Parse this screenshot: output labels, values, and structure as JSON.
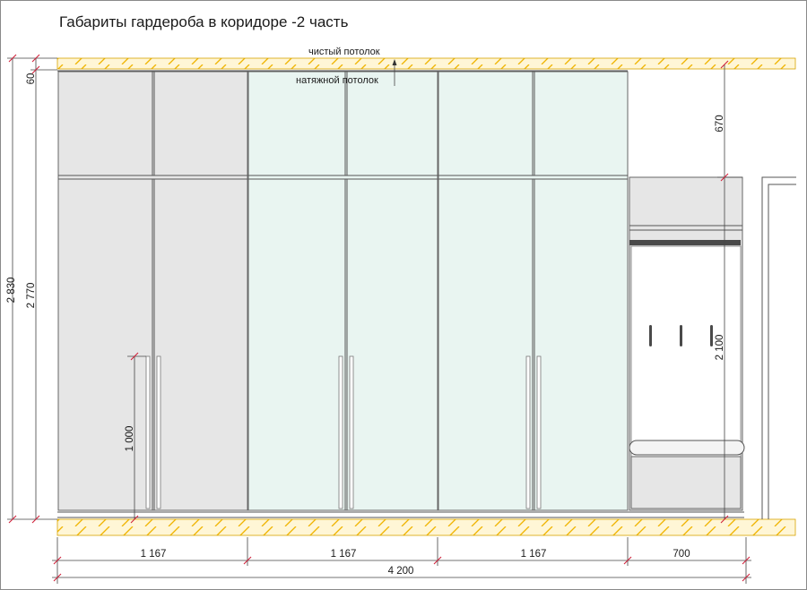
{
  "title": "Габариты гардероба в коридоре -2 часть",
  "notes": {
    "clean_ceiling": "чистый потолок",
    "stretch_ceiling": "натяжной потолок"
  },
  "dimensions": {
    "total_height": "2 830",
    "cabinet_height": "2 770",
    "ceiling_gap": "60",
    "upper_gap": "670",
    "hall_height": "2 100",
    "handle_height": "1 000",
    "section_1": "1 167",
    "section_2": "1 167",
    "section_3": "1 167",
    "section_4": "700",
    "overall_width": "4 200"
  },
  "colors": {
    "hatch_fill": "#fff6d6",
    "hatch_line": "#f0b400",
    "gray_panel": "#e6e6e6",
    "glass_panel": "#e9f5f1",
    "hanger_bar": "#4a4a4a",
    "tick": "#d0203a"
  }
}
